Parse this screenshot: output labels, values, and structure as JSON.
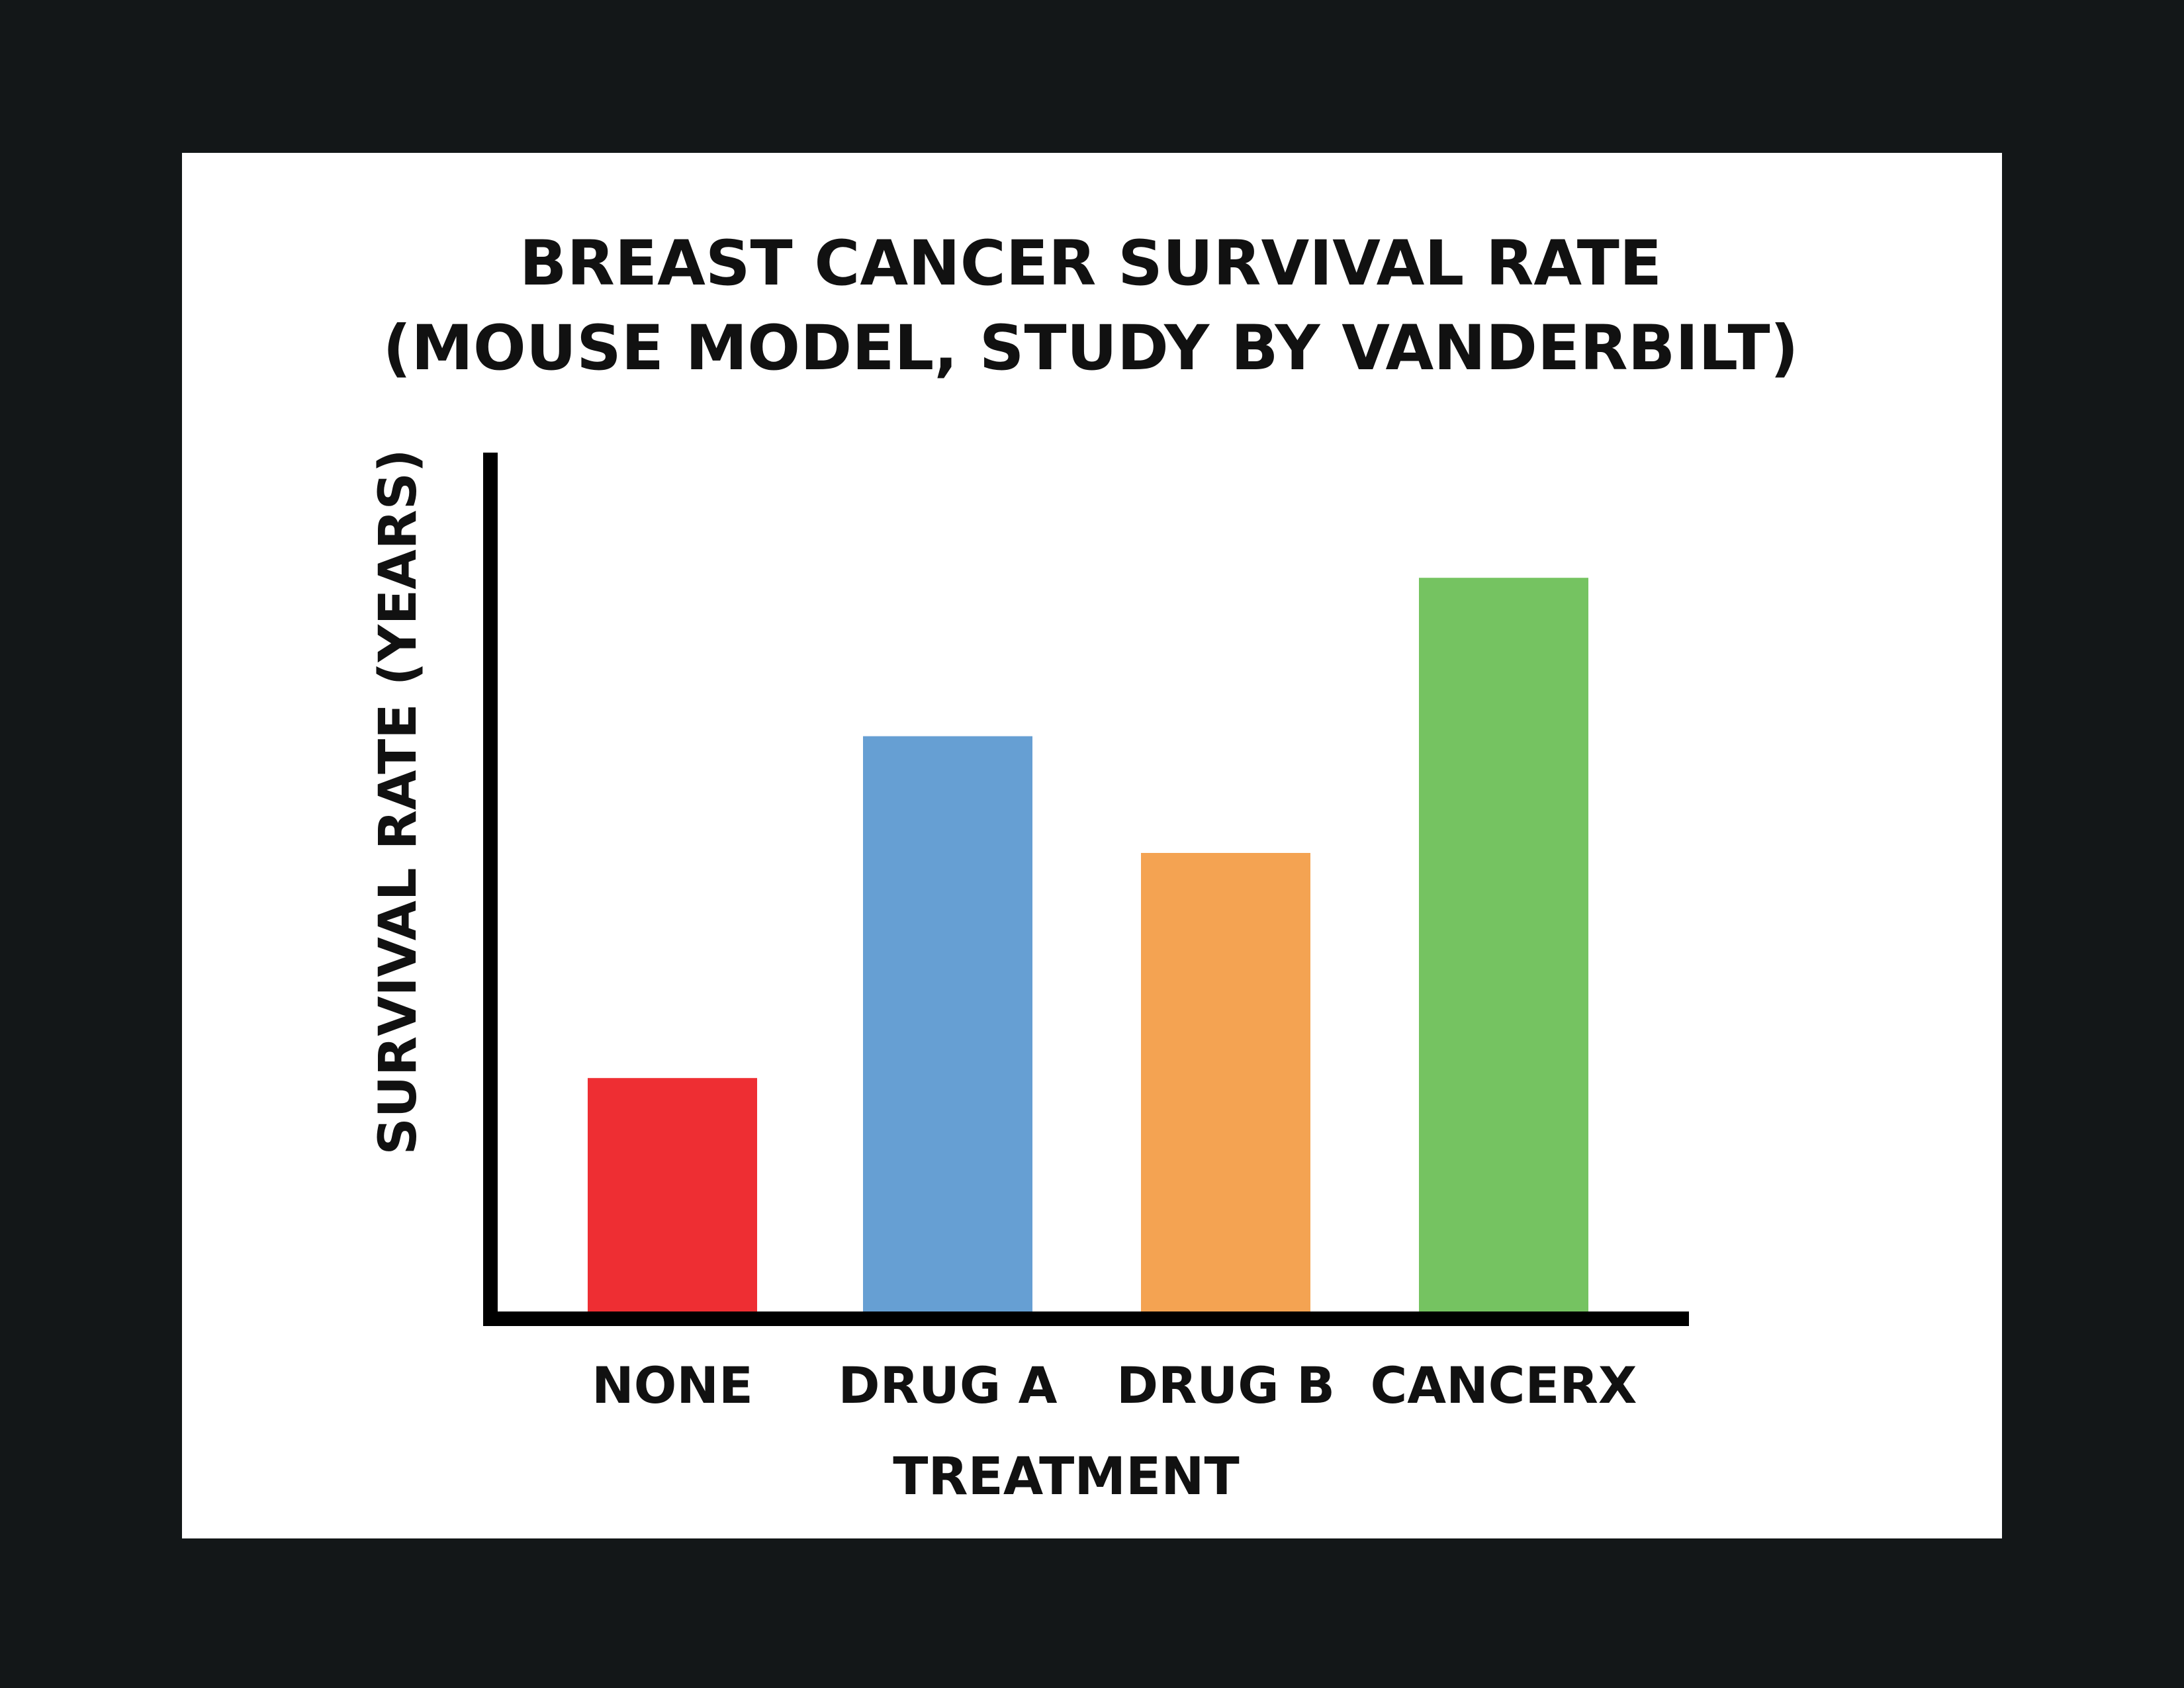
{
  "chart_data": {
    "type": "bar",
    "title": "BREAST CANCER SURVIVAL RATE",
    "subtitle": "(MOUSE MODEL, STUDY BY VANDERBILT)",
    "xlabel": "TREATMENT",
    "ylabel": "SURVIVAL RATE (YEARS)",
    "categories": [
      "NONE",
      "DRUG A",
      "DRUG B",
      "CANCERX"
    ],
    "values": [
      0.28,
      0.69,
      0.55,
      0.88
    ],
    "ylim": [
      0,
      1
    ],
    "grid": false,
    "legend": "none",
    "colors": [
      "#ee2e33",
      "#669fd3",
      "#f4a352",
      "#75c361"
    ]
  }
}
